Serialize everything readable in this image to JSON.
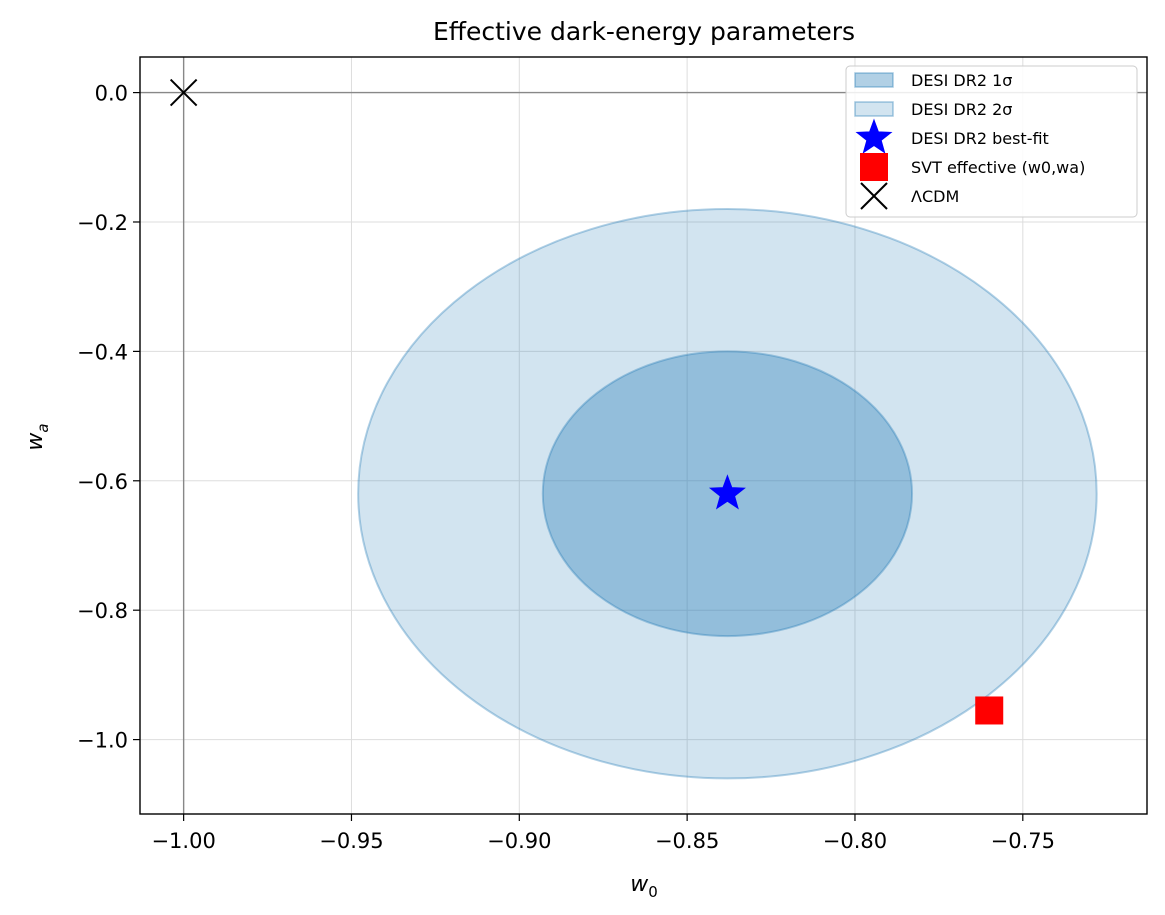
{
  "chart_data": {
    "type": "scatter",
    "title": "Effective dark-energy parameters",
    "xlabel_main": "w",
    "xlabel_sub": "0",
    "ylabel_main": "w",
    "ylabel_sub": "a",
    "xlim": [
      -1.013,
      -0.713
    ],
    "ylim": [
      -1.115,
      0.055
    ],
    "xticks": [
      -1.0,
      -0.95,
      -0.9,
      -0.85,
      -0.8,
      -0.75
    ],
    "xtick_labels": [
      "−1.00",
      "−0.95",
      "−0.90",
      "−0.85",
      "−0.80",
      "−0.75"
    ],
    "yticks": [
      0.0,
      -0.2,
      -0.4,
      -0.6,
      -0.8,
      -1.0
    ],
    "ytick_labels": [
      "0.0",
      "−0.2",
      "−0.4",
      "−0.6",
      "−0.8",
      "−1.0"
    ],
    "grid": true,
    "reference_lines": {
      "x": -1.0,
      "y": 0.0
    },
    "contours": [
      {
        "name": "DESI DR2 2σ",
        "center": [
          -0.838,
          -0.62
        ],
        "half_width_w0": 0.11,
        "half_height_wa": 0.44,
        "color": "#1f77b4",
        "fill_opacity": 0.2
      },
      {
        "name": "DESI DR2 1σ",
        "center": [
          -0.838,
          -0.62
        ],
        "half_width_w0": 0.055,
        "half_height_wa": 0.22,
        "color": "#1f77b4",
        "fill_opacity": 0.35
      }
    ],
    "points": [
      {
        "name": "DESI DR2 best-fit",
        "x": -0.838,
        "y": -0.62,
        "marker": "star",
        "color": "#0000ff"
      },
      {
        "name": "SVT effective (w0,wa)",
        "x": -0.76,
        "y": -0.955,
        "marker": "square",
        "color": "#ff0000"
      },
      {
        "name": "ΛCDM",
        "x": -1.0,
        "y": 0.0,
        "marker": "x",
        "color": "#000000"
      }
    ],
    "legend": {
      "placement": "top-right",
      "entries": [
        {
          "label": "DESI DR2 1σ",
          "kind": "patch",
          "color": "#1f77b4",
          "opacity": 0.35
        },
        {
          "label": "DESI DR2 2σ",
          "kind": "patch",
          "color": "#1f77b4",
          "opacity": 0.2
        },
        {
          "label": "DESI DR2 best-fit",
          "kind": "star",
          "color": "#0000ff"
        },
        {
          "label": "SVT effective (w0,wa)",
          "kind": "square",
          "color": "#ff0000"
        },
        {
          "label": "ΛCDM",
          "kind": "x",
          "color": "#000000"
        }
      ]
    }
  }
}
